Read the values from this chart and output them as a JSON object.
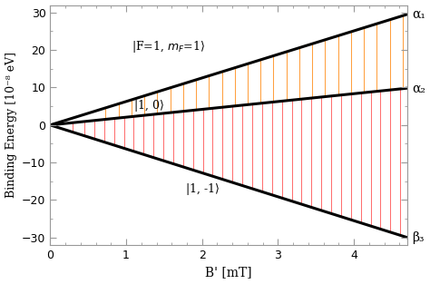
{
  "title": "",
  "xlabel": "B' [mT]",
  "ylabel": "Binding Energy [10⁻⁸ eV]",
  "xlim": [
    0,
    4.7
  ],
  "ylim": [
    -32,
    32
  ],
  "yticks": [
    -30,
    -20,
    -10,
    0,
    10,
    20,
    30
  ],
  "xticks": [
    0,
    1,
    2,
    3,
    4
  ],
  "alpha1_slope": 6.28,
  "alpha2_slope": 2.09,
  "beta3_slope": -6.38,
  "label_F1mF1": "|F=1, $m_F$=1⟩",
  "label_10": "|1, 0⟩",
  "label_1m1": "|1, -1⟩",
  "label_a1": "α₁",
  "label_a2": "α₂",
  "label_b3": "β₃",
  "orange_lines_x": [
    0.72,
    0.9,
    1.07,
    1.24,
    1.41,
    1.58,
    1.75,
    1.92,
    2.09,
    2.26,
    2.43,
    2.6,
    2.77,
    2.94,
    3.11,
    3.28,
    3.45,
    3.62,
    3.79,
    3.96,
    4.13,
    4.3,
    4.47,
    4.64
  ],
  "red_lines_x": [
    0.3,
    0.45,
    0.58,
    0.71,
    0.84,
    0.97,
    1.1,
    1.23,
    1.36,
    1.49,
    1.62,
    1.75,
    1.88,
    2.01,
    2.14,
    2.27,
    2.4,
    2.53,
    2.66,
    2.79,
    2.92,
    3.05,
    3.18,
    3.31,
    3.44,
    3.57,
    3.7,
    3.83,
    3.96,
    4.09,
    4.22,
    4.35,
    4.48,
    4.61
  ],
  "line_color": "#000000",
  "orange_color": "#FFA040",
  "red_color": "#FF7070",
  "spine_color": "#999999",
  "background_color": "#ffffff",
  "line_width": 2.2,
  "vline_lw": 0.75
}
